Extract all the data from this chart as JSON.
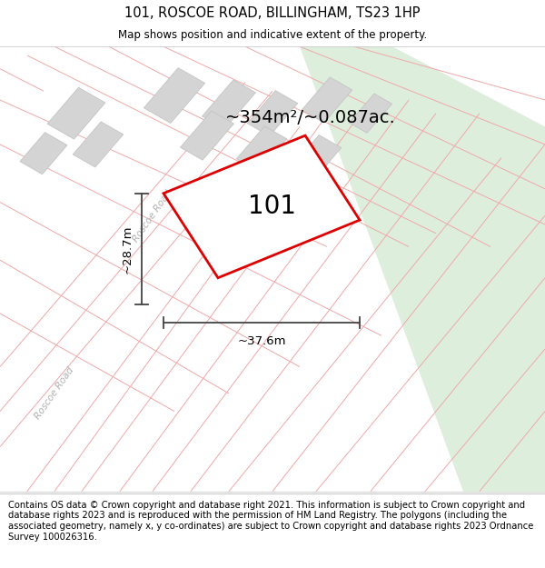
{
  "title": "101, ROSCOE ROAD, BILLINGHAM, TS23 1HP",
  "subtitle": "Map shows position and indicative extent of the property.",
  "footer": "Contains OS data © Crown copyright and database right 2021. This information is subject to Crown copyright and database rights 2023 and is reproduced with the permission of HM Land Registry. The polygons (including the associated geometry, namely x, y co-ordinates) are subject to Crown copyright and database rights 2023 Ordnance Survey 100026316.",
  "map_bg": "#f7f6f1",
  "green_area_color": "#ddeedd",
  "building_fill": "#d4d4d4",
  "building_edge": "#c0c0c0",
  "road_line_color": "#f0a8a8",
  "main_plot_color": "#dd0000",
  "main_plot_fill": "#ffffff",
  "dim_line_color": "#444444",
  "area_label": "~354m²/~0.087ac.",
  "width_label": "~37.6m",
  "height_label": "~28.7m",
  "plot_label": "101",
  "road_label_1": "Roscoe Road",
  "road_label_2": "Roscoe Road",
  "title_fontsize": 10.5,
  "subtitle_fontsize": 8.5,
  "footer_fontsize": 7.2,
  "area_label_fontsize": 14,
  "plot_label_fontsize": 20,
  "road_label_fontsize": 7.5,
  "dim_fontsize": 9.5,
  "figsize": [
    6.0,
    6.25
  ],
  "dpi": 100
}
